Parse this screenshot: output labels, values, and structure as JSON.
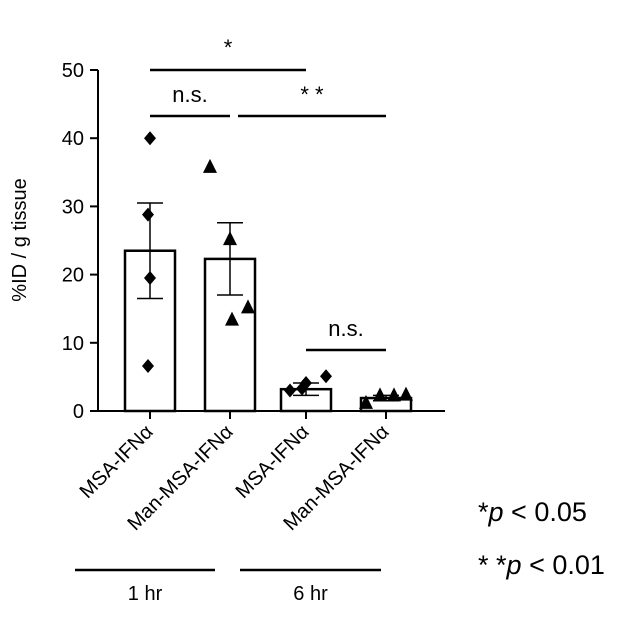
{
  "chart_data": {
    "type": "bar",
    "title": "",
    "xlabel": "",
    "ylabel": "%ID / g tissue",
    "ylim": [
      0,
      50
    ],
    "yticks": [
      0,
      10,
      20,
      30,
      40,
      50
    ],
    "grid": false,
    "categories": [
      "MSA-IFNα",
      "Man-MSA-IFNα",
      "MSA-IFNα",
      "Man-MSA-IFNα"
    ],
    "groups": [
      {
        "label": "1 hr",
        "category_indices": [
          0,
          1
        ]
      },
      {
        "label": "6 hr",
        "category_indices": [
          2,
          3
        ]
      }
    ],
    "values": [
      23.5,
      22.3,
      3.2,
      1.9
    ],
    "errors": [
      7.0,
      5.3,
      0.9,
      0.4
    ],
    "points": [
      {
        "marker": "diamond",
        "values": [
          40.0,
          28.8,
          19.5,
          6.6
        ]
      },
      {
        "marker": "triangle",
        "values": [
          35.8,
          25.2,
          13.4,
          15.2
        ]
      },
      {
        "marker": "diamond",
        "values": [
          3.0,
          4.1,
          3.3,
          5.1
        ]
      },
      {
        "marker": "triangle",
        "values": [
          1.2,
          2.3,
          2.3,
          2.4
        ]
      }
    ],
    "significance": [
      {
        "from": 0,
        "to": 2,
        "label": "*"
      },
      {
        "from": 0,
        "to": 1,
        "label": "n.s."
      },
      {
        "from": 1,
        "to": 3,
        "label": "* *"
      },
      {
        "from": 2,
        "to": 3,
        "label": "n.s."
      }
    ],
    "legend": {
      "items": [
        {
          "stars": "*",
          "p": "p",
          "text": " < 0.05"
        },
        {
          "stars": "* *",
          "p": "p",
          "text": " < 0.01"
        }
      ]
    }
  }
}
